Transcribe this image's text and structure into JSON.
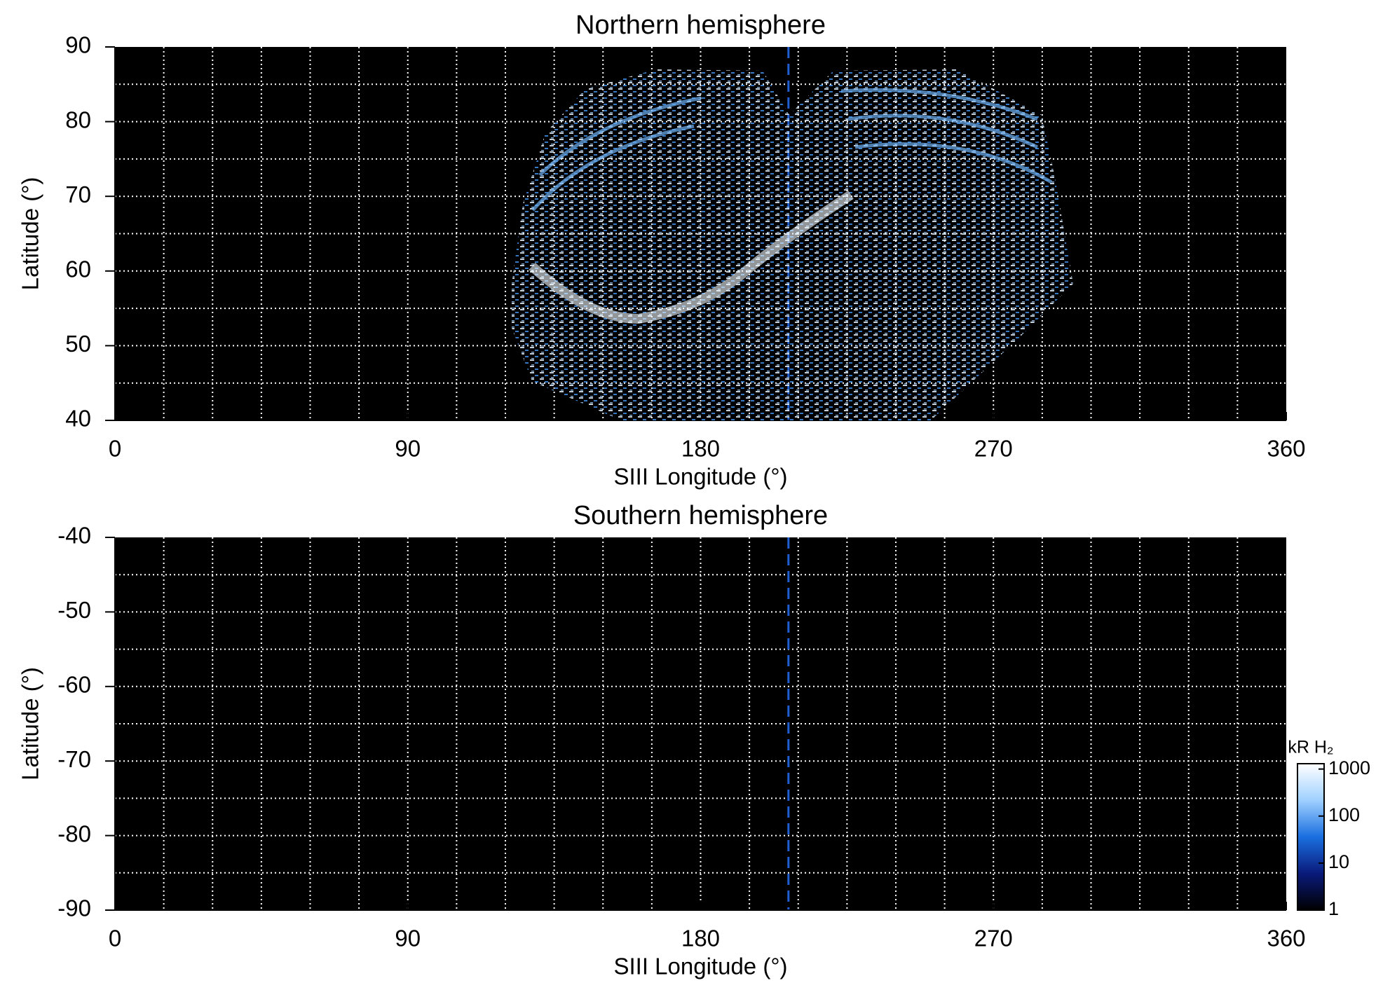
{
  "chart_data": [
    {
      "type": "heatmap",
      "title": "Northern hemisphere",
      "xlabel": "SIII Longitude (°)",
      "ylabel": "Latitude (°)",
      "xlim": [
        0,
        360
      ],
      "ylim": [
        40,
        90
      ],
      "xticks": [
        0,
        90,
        180,
        270,
        360
      ],
      "yticks": [
        40,
        50,
        60,
        70,
        80,
        90
      ],
      "xgrid": [
        15,
        30,
        45,
        60,
        75,
        90,
        105,
        120,
        135,
        150,
        165,
        180,
        195,
        210,
        225,
        240,
        255,
        270,
        285,
        300,
        315,
        330,
        345
      ],
      "ygrid": [
        45,
        50,
        55,
        60,
        65,
        70,
        75,
        80,
        85
      ],
      "vline": 207,
      "vline_color": "#1f5fd1"
    },
    {
      "type": "heatmap",
      "title": "Southern hemisphere",
      "xlabel": "SIII Longitude (°)",
      "ylabel": "Latitude (°)",
      "xlim": [
        0,
        360
      ],
      "ylim": [
        -90,
        -40
      ],
      "xticks": [
        0,
        90,
        180,
        270,
        360
      ],
      "yticks": [
        -90,
        -80,
        -70,
        -60,
        -50,
        -40
      ],
      "xgrid": [
        15,
        30,
        45,
        60,
        75,
        90,
        105,
        120,
        135,
        150,
        165,
        180,
        195,
        210,
        225,
        240,
        255,
        270,
        285,
        300,
        315,
        330,
        345
      ],
      "ygrid": [
        -85,
        -80,
        -75,
        -70,
        -65,
        -60,
        -55,
        -50,
        -45
      ],
      "vline": 207,
      "vline_color": "#1f5fd1",
      "colorbar": {
        "label": "kR H₂",
        "scale": "log",
        "lim": [
          1,
          1300
        ],
        "ticks": [
          1,
          10,
          100,
          1000
        ],
        "colors": [
          "#000000",
          "#0a1a7a",
          "#1a6fe0",
          "#9fd0ff",
          "#ffffff"
        ]
      }
    }
  ]
}
